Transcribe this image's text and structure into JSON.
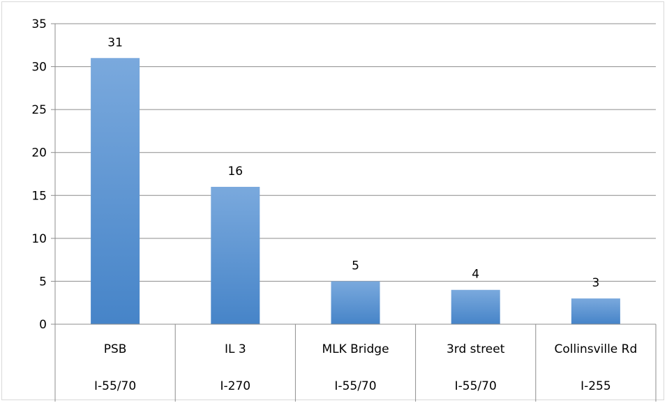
{
  "chart_data": {
    "type": "bar",
    "categories": [
      [
        "PSB",
        "I-55/70"
      ],
      [
        "IL 3",
        "I-270"
      ],
      [
        "MLK Bridge",
        "I-55/70"
      ],
      [
        "3rd street",
        "I-55/70"
      ],
      [
        "Collinsville Rd",
        "I-255"
      ]
    ],
    "values": [
      31,
      16,
      5,
      4,
      3
    ],
    "data_labels": [
      "31",
      "16",
      "5",
      "4",
      "3"
    ],
    "ylim": [
      0,
      35
    ],
    "yticks": [
      0,
      5,
      10,
      15,
      20,
      25,
      30,
      35
    ],
    "ytick_labels": [
      "0",
      "5",
      "10",
      "15",
      "20",
      "25",
      "30",
      "35"
    ],
    "grid": true,
    "legend": "none",
    "title": "",
    "xlabel": "",
    "ylabel": "",
    "colors": {
      "bar_top": "#7aa9dd",
      "bar_bottom": "#4684c8",
      "gridline": "#8c8c8c",
      "frame": "#d9d9d9"
    }
  }
}
